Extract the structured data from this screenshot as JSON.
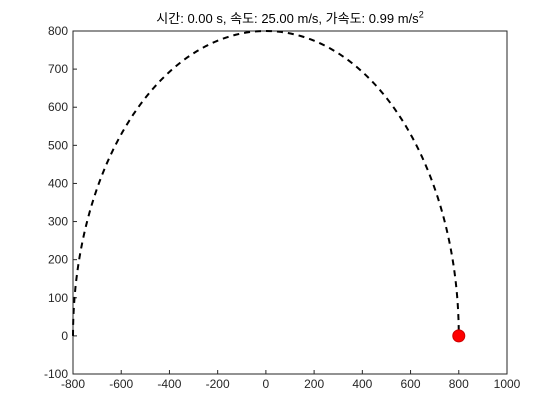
{
  "chart_data": {
    "type": "line",
    "title": {
      "time_label": "시간:",
      "time_value": "0.00",
      "time_unit": "s,",
      "speed_label": "속도:",
      "speed_value": "25.00",
      "speed_unit": "m/s,",
      "accel_label": "가속도:",
      "accel_value": "0.99",
      "accel_unit": "m/s",
      "accel_exp": "2"
    },
    "xlim": [
      -800,
      1000
    ],
    "ylim": [
      -100,
      800
    ],
    "xticks": [
      -800,
      -600,
      -400,
      -200,
      0,
      200,
      400,
      600,
      800,
      1000
    ],
    "yticks": [
      -100,
      0,
      100,
      200,
      300,
      400,
      500,
      600,
      700,
      800
    ],
    "grid": false,
    "series": [
      {
        "style": "dashed",
        "color": "#000000",
        "shape": "semi-ellipse",
        "center": [
          0,
          0
        ],
        "radius_x": 800,
        "radius_y": 800,
        "from_angle_deg": 180,
        "to_angle_deg": 0
      }
    ],
    "marker": {
      "x": 800,
      "y": 0,
      "color": "#ff0000"
    }
  }
}
